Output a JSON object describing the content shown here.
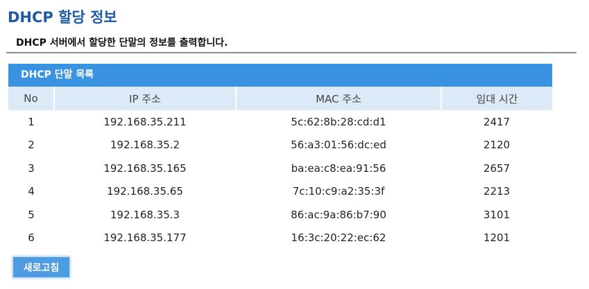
{
  "page": {
    "title": "DHCP 할당 정보",
    "description": "DHCP 서버에서 할당한 단말의 정보를 출력합니다."
  },
  "lease_list": {
    "title": "DHCP 단말 목록",
    "columns": [
      "No",
      "IP 주소",
      "MAC 주소",
      "임대 시간"
    ],
    "rows": [
      [
        "1",
        "192.168.35.211",
        "5c:62:8b:28:cd:d1",
        "2417"
      ],
      [
        "2",
        "192.168.35.2",
        "56:a3:01:56:dc:ed",
        "2120"
      ],
      [
        "3",
        "192.168.35.165",
        "ba:ea:c8:ea:91:56",
        "2657"
      ],
      [
        "4",
        "192.168.35.65",
        "7c:10:c9:a2:35:3f",
        "2213"
      ],
      [
        "5",
        "192.168.35.3",
        "86:ac:9a:86:b7:90",
        "3101"
      ],
      [
        "6",
        "192.168.35.177",
        "16:3c:20:22:ec:62",
        "1201"
      ]
    ]
  },
  "actions": {
    "refresh_label": "새로고침"
  },
  "colors": {
    "title": "#1e5aa6",
    "panel_header": "#3a93e0",
    "column_header_bg": "#dce9f6",
    "button": "#4d9be0"
  }
}
